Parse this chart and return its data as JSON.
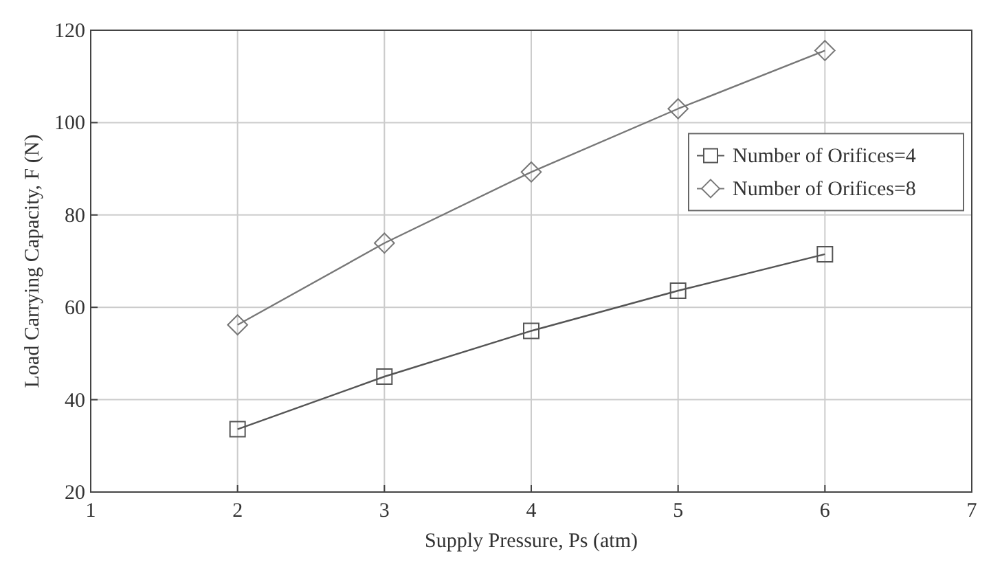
{
  "chart_data": {
    "type": "line",
    "xlabel": "Supply Pressure, Ps (atm)",
    "ylabel": "Load Carrying Capacity, F (N)",
    "x": [
      2,
      3,
      4,
      5,
      6
    ],
    "series": [
      {
        "name": "Number of Orifices=4",
        "color": "#555555",
        "values": [
          33.6,
          45,
          54.9,
          63.6,
          71.5
        ],
        "marker": "square"
      },
      {
        "name": "Number of Orifices=8",
        "color": "#777777",
        "values": [
          56.2,
          73.9,
          89.3,
          103,
          115.6
        ],
        "marker": "diamond"
      }
    ],
    "xlim": [
      1,
      7
    ],
    "xticks": [
      1,
      2,
      3,
      4,
      5,
      6,
      7
    ],
    "ylim": [
      20,
      120
    ],
    "yticks": [
      20,
      40,
      60,
      80,
      100,
      120
    ],
    "grid": true,
    "legend": "right",
    "line_style": "solid"
  }
}
